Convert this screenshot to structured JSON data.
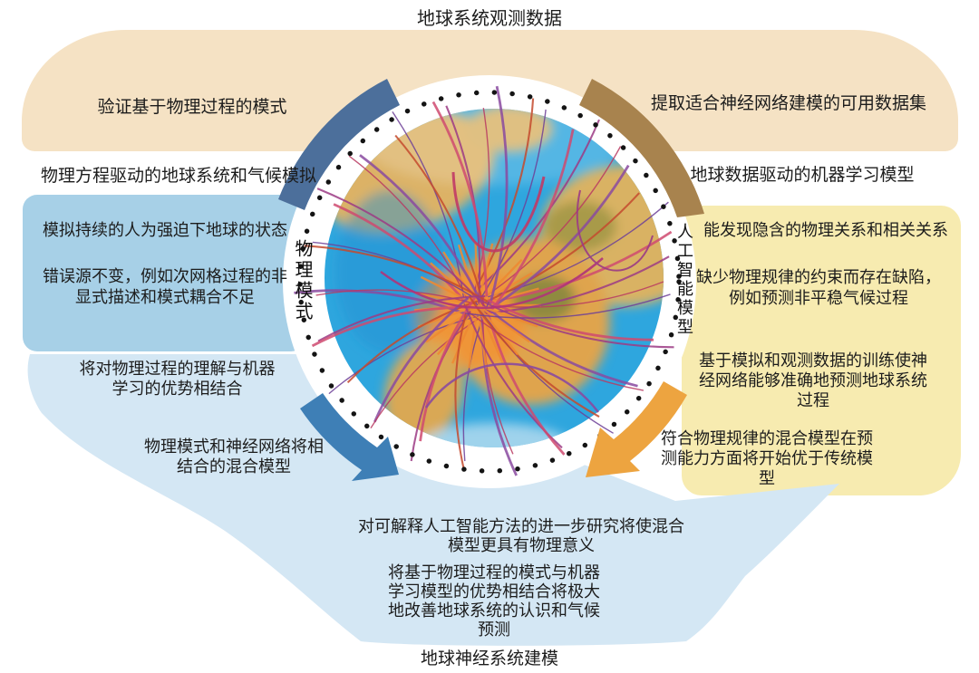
{
  "titles": {
    "top": "地球系统观测数据",
    "bottom": "地球神经系统建模"
  },
  "left_flow": {
    "arc_note": "验证基于物理过程的模式",
    "band_title": "物理方程驱动的地球系统和气候模拟",
    "vertical_label": "物理模式",
    "box_items": [
      "模拟持续的人为强迫下地球的状态",
      "错误源不变，例如次网格过程的非显式描述和模式耦合不足"
    ],
    "notes": [
      "将对物理过程的理解与机器学习的优势相结合",
      "物理模式和神经网络将相结合的混合模型"
    ]
  },
  "right_flow": {
    "arc_note": "提取适合神经网络建模的可用数据集",
    "band_title": "地球数据驱动的机器学习模型",
    "vertical_label": "人工智能模型",
    "box_items": [
      "能发现隐含的物理关系和相关关系",
      "缺少物理规律的约束而存在缺陷，例如预测非平稳气候过程",
      "基于模拟和观测数据的训练使神经网络能够准确地预测地球系统过程",
      "符合物理规律的混合模型在预测能力方面将开始优于传统模型"
    ]
  },
  "bottom_flow": {
    "notes": [
      "对可解释人工智能方法的进一步研究将使混合模型更具有物理意义",
      "将基于物理过程的模式与机器学习模型的优势相结合将极大地改善地球系统的认识和气候预测"
    ]
  },
  "colors": {
    "peach": "#f5e2c4",
    "sky_blue": "#a7d0e7",
    "pale_yellow": "#f7ebb0",
    "pale_blue": "#d4e7f4",
    "arc_blue": "#4c6f9b",
    "arrow_blue": "#3e7fb6",
    "arc_gold": "#a8834e",
    "arrow_orange": "#eda440",
    "ocean": "#2ea6de",
    "land": "#dcb266",
    "dot_ring": "#141414"
  }
}
